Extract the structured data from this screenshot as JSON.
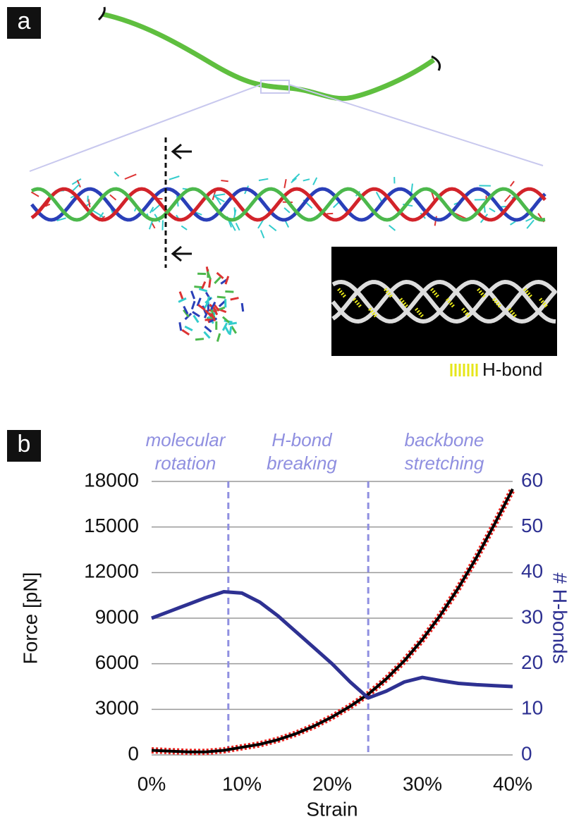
{
  "panel_a": {
    "label": "a",
    "hbond_legend": "H-bond"
  },
  "chart_data": {
    "type": "line",
    "panel_label": "b",
    "x_label": "Strain",
    "y_label": "Force [pN]",
    "y2_label": "# H-bonds",
    "x": [
      0,
      2,
      4,
      6,
      8,
      10,
      12,
      14,
      16,
      18,
      20,
      22,
      24,
      26,
      28,
      30,
      32,
      34,
      36,
      38,
      40
    ],
    "series": [
      {
        "color": "#000000",
        "noise_color": "#e8231f",
        "values": [
          300,
          250,
          200,
          200,
          300,
          500,
          700,
          1000,
          1400,
          1900,
          2500,
          3200,
          4000,
          5000,
          6200,
          7600,
          9200,
          11000,
          13000,
          15200,
          17500
        ]
      },
      {
        "color": "#2e3192",
        "axis": "y2",
        "values": [
          30,
          31.5,
          33,
          34.5,
          35.8,
          35.5,
          33.5,
          30.5,
          27,
          23.5,
          20,
          16,
          12.5,
          14,
          16,
          17,
          16.3,
          15.7,
          15.4,
          15.2,
          15
        ]
      }
    ],
    "xlim": [
      0,
      40
    ],
    "xticks": [
      {
        "value": 0,
        "label": "0%"
      },
      {
        "value": 10,
        "label": "10%"
      },
      {
        "value": 20,
        "label": "20%"
      },
      {
        "value": 30,
        "label": "30%"
      },
      {
        "value": 40,
        "label": "40%"
      }
    ],
    "ylim": [
      0,
      18000
    ],
    "yticks": [
      0,
      3000,
      6000,
      9000,
      12000,
      15000,
      18000
    ],
    "y2lim": [
      0,
      60
    ],
    "y2ticks": [
      0,
      10,
      20,
      30,
      40,
      50,
      60
    ],
    "y2_color": "#2e3192",
    "grid": true,
    "vlines": [
      8.5,
      24
    ],
    "vline_color": "#8f8fe0",
    "annotations": [
      [
        "molecular",
        "rotation"
      ],
      [
        "H-bond",
        "breaking"
      ],
      [
        "backbone",
        "stretching"
      ]
    ]
  }
}
